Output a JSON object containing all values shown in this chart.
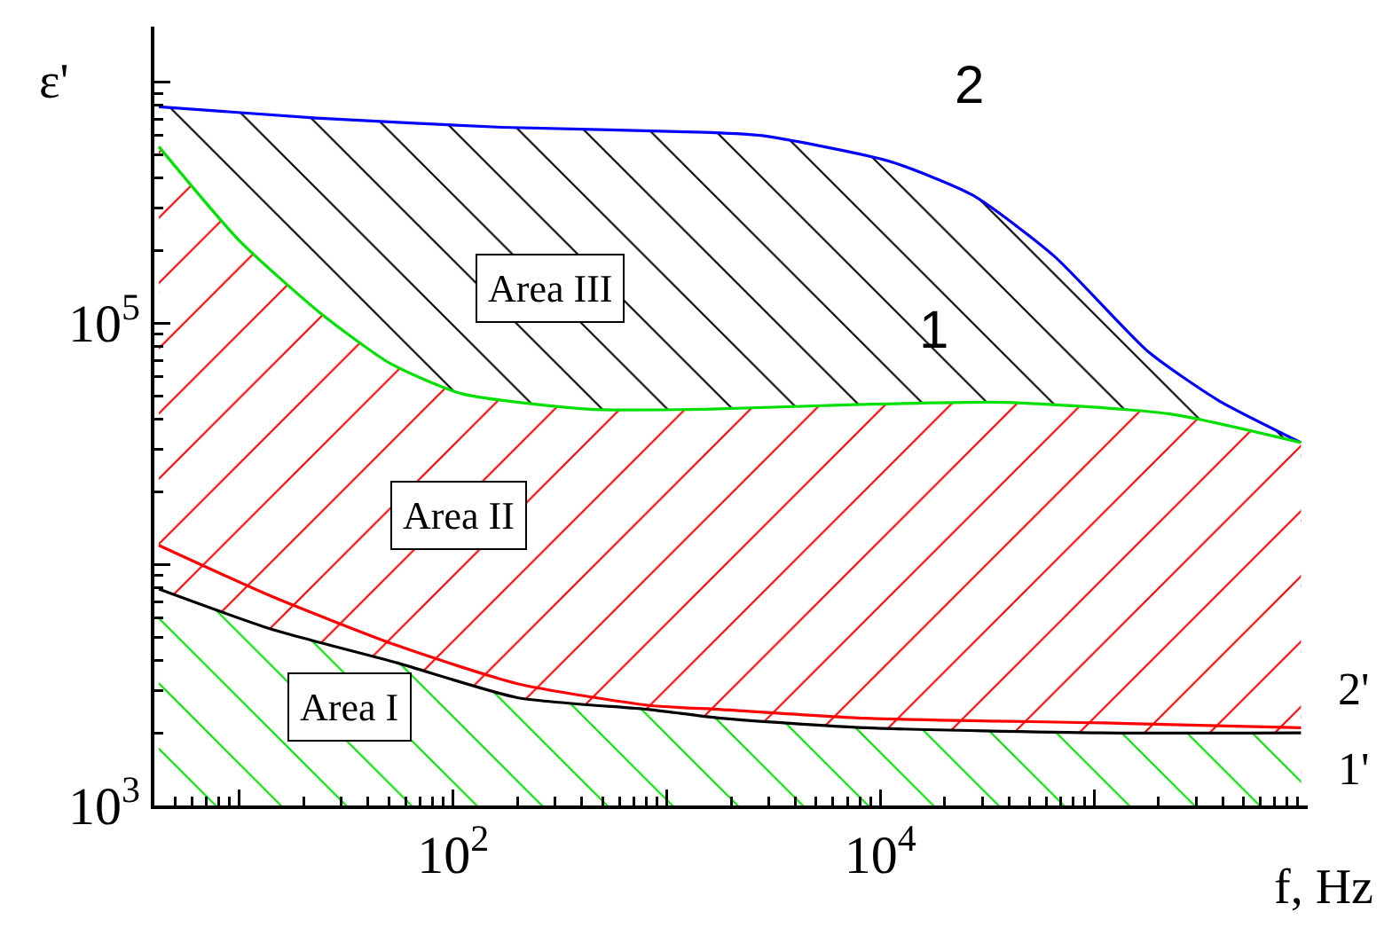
{
  "chart_data": {
    "type": "line",
    "xlabel": "f, Hz",
    "ylabel": "ε'",
    "log": "xy",
    "grid": false,
    "legend": false,
    "marker": "none",
    "line_style": "solid",
    "xlim": [
      4,
      1000000
    ],
    "ylim": [
      1000,
      1700000
    ],
    "xticks": [
      {
        "value": 10,
        "label": null
      },
      {
        "value": 100,
        "label": "10$^{2}$"
      },
      {
        "value": 1000,
        "label": null
      },
      {
        "value": 10000,
        "label": "10$^{4}$"
      },
      {
        "value": 100000,
        "label": null
      }
    ],
    "yticks": [
      {
        "value": 1000,
        "label": "10$^{3}$"
      },
      {
        "value": 10000,
        "label": null
      },
      {
        "value": 100000,
        "label": "10$^{5}$"
      },
      {
        "value": 1000000,
        "label": null
      }
    ],
    "annotations": [
      "Area III",
      "Area II",
      "Area I"
    ],
    "series": [
      {
        "name": "2",
        "type": "area",
        "color": "#0000ff",
        "x": [
          4.2,
          23,
          170,
          1500,
          2800,
          11000,
          27000,
          65000,
          180000,
          380000,
          930000
        ],
        "values": [
          790000,
          710000,
          650000,
          620000,
          600000,
          470000,
          340000,
          190000,
          76000,
          48000,
          32000
        ]
      },
      {
        "name": "1",
        "type": "area",
        "color": "#00e000",
        "x": [
          4.2,
          10,
          24,
          51,
          110,
          440,
          1500,
          7600,
          39000,
          230000,
          930000
        ],
        "values": [
          540000,
          220000,
          110000,
          68000,
          51000,
          44000,
          44000,
          46000,
          47000,
          42000,
          32000
        ]
      },
      {
        "name": "2'",
        "color": "#ff0000",
        "x": [
          4.2,
          14,
          55,
          200,
          830,
          1800,
          8500,
          110000,
          930000
        ],
        "values": [
          12000,
          7400,
          4600,
          3200,
          2600,
          2500,
          2300,
          2200,
          2100
        ]
      },
      {
        "name": "1'",
        "type": "area",
        "color": "#000000",
        "x": [
          4.2,
          14,
          55,
          200,
          830,
          1800,
          8500,
          110000,
          930000
        ],
        "values": [
          7900,
          5400,
          3900,
          2800,
          2500,
          2300,
          2100,
          2000,
          2000
        ]
      }
    ]
  }
}
